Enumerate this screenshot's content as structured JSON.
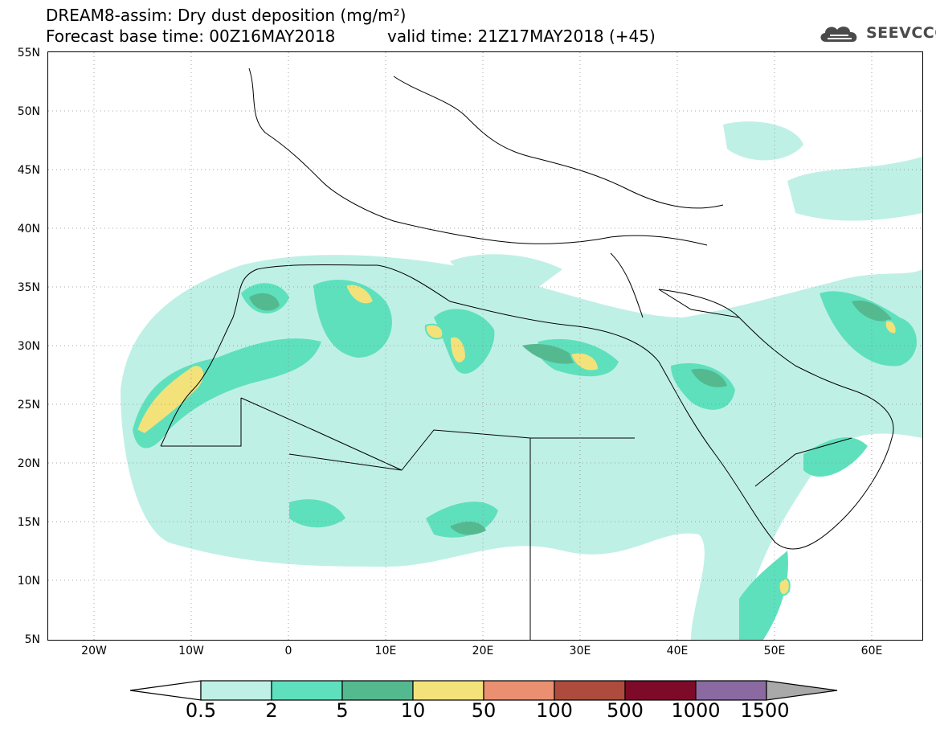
{
  "header": {
    "title_line1": "DREAM8-assim: Dry dust deposition (mg/m²)",
    "title_line2": "Forecast base time: 00Z16MAY2018",
    "title_valid": "valid time: 21Z17MAY2018 (+45)"
  },
  "logo": {
    "text": "SEEVCCC",
    "icon": "cloud-logo-icon",
    "color": "#4a4a4a"
  },
  "map": {
    "lat_labels": [
      "55N",
      "50N",
      "45N",
      "40N",
      "35N",
      "30N",
      "25N",
      "20N",
      "15N",
      "10N",
      "5N"
    ],
    "lon_labels": [
      "20W",
      "10W",
      "0",
      "10E",
      "20E",
      "30E",
      "40E",
      "50E",
      "60E"
    ],
    "lon_range": [
      -25,
      65
    ],
    "lat_range": [
      5,
      55
    ],
    "grid": "dotted"
  },
  "colorbar": {
    "labels": [
      "0.5",
      "2",
      "5",
      "10",
      "50",
      "100",
      "500",
      "1000",
      "1500"
    ],
    "colors": [
      "#bff0e6",
      "#5fe0bd",
      "#55b990",
      "#f3e27a",
      "#ea9070",
      "#ad4c3c",
      "#7e0a2a",
      "#8a6aa0",
      "#a9a9a9"
    ],
    "under_color": "#ffffff"
  }
}
